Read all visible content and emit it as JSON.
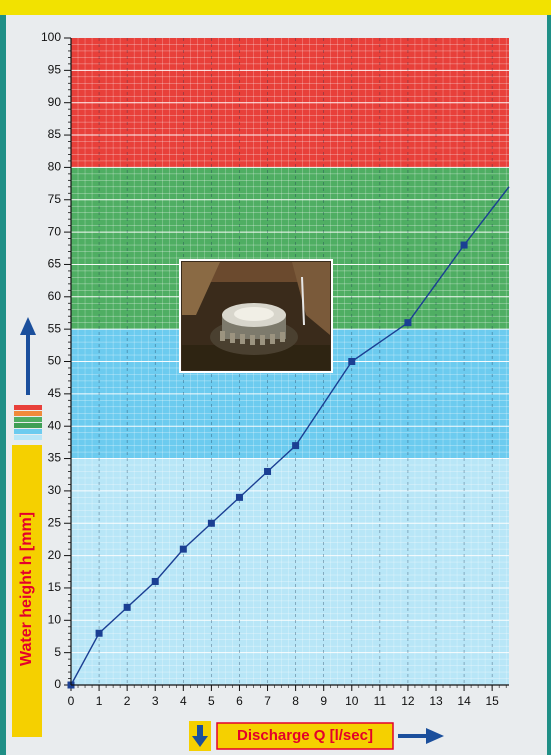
{
  "colors": {
    "frame": "#1f8f86",
    "top_bar": "#f2e200",
    "panel": "#e9ecee",
    "band_red": "#e8403a",
    "band_green": "#4fae63",
    "band_blue": "#6ccbef",
    "band_lightblue": "#b8e6f7",
    "series_line": "#1b3f93",
    "axis_label_bg": "#f5d000",
    "axis_label_text": "#e4002b",
    "arrow": "#1b4f9c"
  },
  "chart_data": {
    "type": "line",
    "xlabel": "Discharge Q [l/sec]",
    "ylabel": "Water height h [mm]",
    "xlim": [
      0,
      15.6
    ],
    "ylim": [
      0,
      100
    ],
    "x_ticks": [
      0,
      1,
      2,
      3,
      4,
      5,
      6,
      7,
      8,
      9,
      10,
      11,
      12,
      13,
      14,
      15
    ],
    "y_ticks": [
      0,
      5,
      10,
      15,
      20,
      25,
      30,
      35,
      40,
      45,
      50,
      55,
      60,
      65,
      70,
      75,
      80,
      85,
      90,
      95,
      100
    ],
    "grid": true,
    "bands": [
      {
        "name": "red",
        "from": 80,
        "to": 100
      },
      {
        "name": "green",
        "from": 55,
        "to": 80
      },
      {
        "name": "blue",
        "from": 35,
        "to": 55
      },
      {
        "name": "lightblue",
        "from": 0,
        "to": 35
      }
    ],
    "series": [
      {
        "x": [
          0,
          1,
          2,
          3,
          4,
          5,
          6,
          7,
          8,
          10,
          12,
          14,
          15.6
        ],
        "y": [
          0,
          8,
          12,
          16,
          21,
          25,
          29,
          33,
          37,
          50,
          56,
          68,
          77
        ]
      }
    ],
    "inset_image": "photo of metal flow outlet in water tank"
  }
}
